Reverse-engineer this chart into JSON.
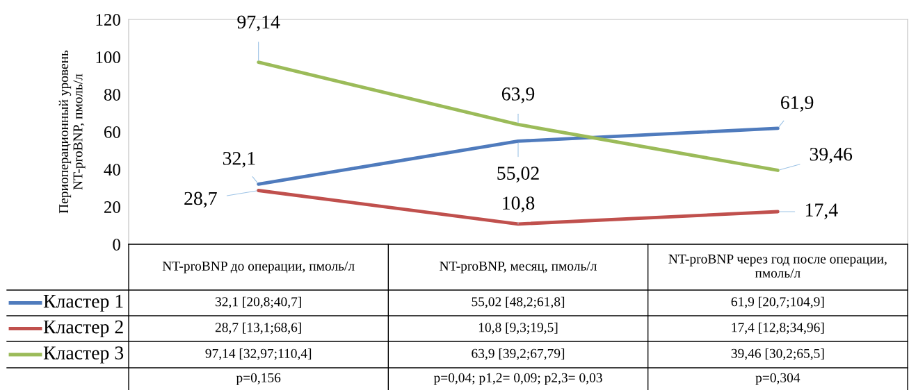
{
  "chart_data": {
    "type": "line",
    "ylabel": "Периоперационный уровень\nNT-proBNP, пмоль/л",
    "categories": [
      "NT-proBNP до операции, пмоль/л",
      "NT-proBNP, месяц, пмоль/л",
      "NT-proBNP через год после операции, пмоль/л"
    ],
    "series": [
      {
        "name": "Кластер 1",
        "color": "#4f7bbd",
        "values": [
          32.1,
          55.02,
          61.9
        ],
        "value_labels": [
          "32,1",
          "55,02",
          "61,9"
        ]
      },
      {
        "name": "Кластер 2",
        "color": "#c0504d",
        "values": [
          28.7,
          10.8,
          17.4
        ],
        "value_labels": [
          "28,7",
          "10,8",
          "17,4"
        ]
      },
      {
        "name": "Кластер 3",
        "color": "#9bbb59",
        "values": [
          97.14,
          63.9,
          39.46
        ],
        "value_labels": [
          "97,14",
          "63,9",
          "39,46"
        ]
      }
    ],
    "ylim": [
      0,
      120
    ],
    "yticks": [
      0,
      20,
      40,
      60,
      80,
      100,
      120
    ],
    "grid": false,
    "legend": "bottom left",
    "marker": "none",
    "line_style": "solid",
    "annotations": [
      "32,1 [20,8;40,7]",
      "55,02 [48,2;61,8]",
      "61,9 [20,7;104,9]",
      "28,7 [13,1;68,6]",
      "10,8 [9,3;19,5]",
      "17,4 [12,8;34,96]",
      "97,14 [32,97;110,4]",
      "63,9 [39,2;67,79]",
      "39,46 [30,2;65,5]",
      "p=0,156",
      "p=0,04; p1,2= 0,09; p2,3= 0,03",
      "p=0,304"
    ]
  }
}
